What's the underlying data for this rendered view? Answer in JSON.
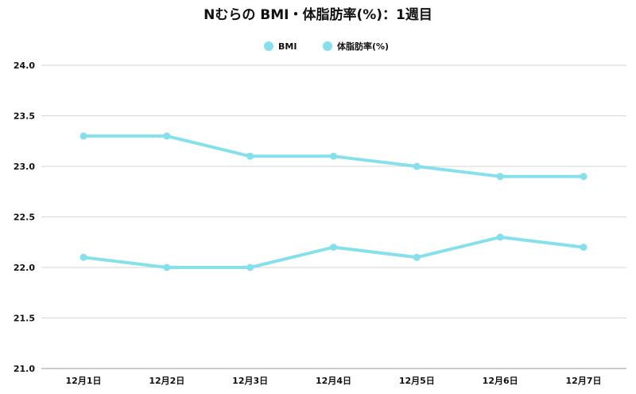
{
  "chart_data": {
    "type": "line",
    "title": "Nむらの BMI・体脂肪率(%)：1週目",
    "xlabel": "",
    "ylabel": "",
    "categories": [
      "12月1日",
      "12月2日",
      "12月3日",
      "12月4日",
      "12月5日",
      "12月6日",
      "12月7日"
    ],
    "ylim": [
      21.0,
      24.0
    ],
    "yticks": [
      21.0,
      21.5,
      22.0,
      22.5,
      23.0,
      23.5,
      24.0
    ],
    "ytick_labels": [
      "21.0",
      "21.5",
      "22.0",
      "22.5",
      "23.0",
      "23.5",
      "24.0"
    ],
    "grid": true,
    "legend_position": "top-center",
    "series": [
      {
        "name": "BMI",
        "color": "#86e0ec",
        "values": [
          22.1,
          22.0,
          22.0,
          22.2,
          22.1,
          22.3,
          22.2
        ]
      },
      {
        "name": "体脂肪率(%)",
        "color": "#86e0ec",
        "values": [
          23.3,
          23.3,
          23.1,
          23.1,
          23.0,
          22.9,
          22.9
        ]
      }
    ]
  }
}
